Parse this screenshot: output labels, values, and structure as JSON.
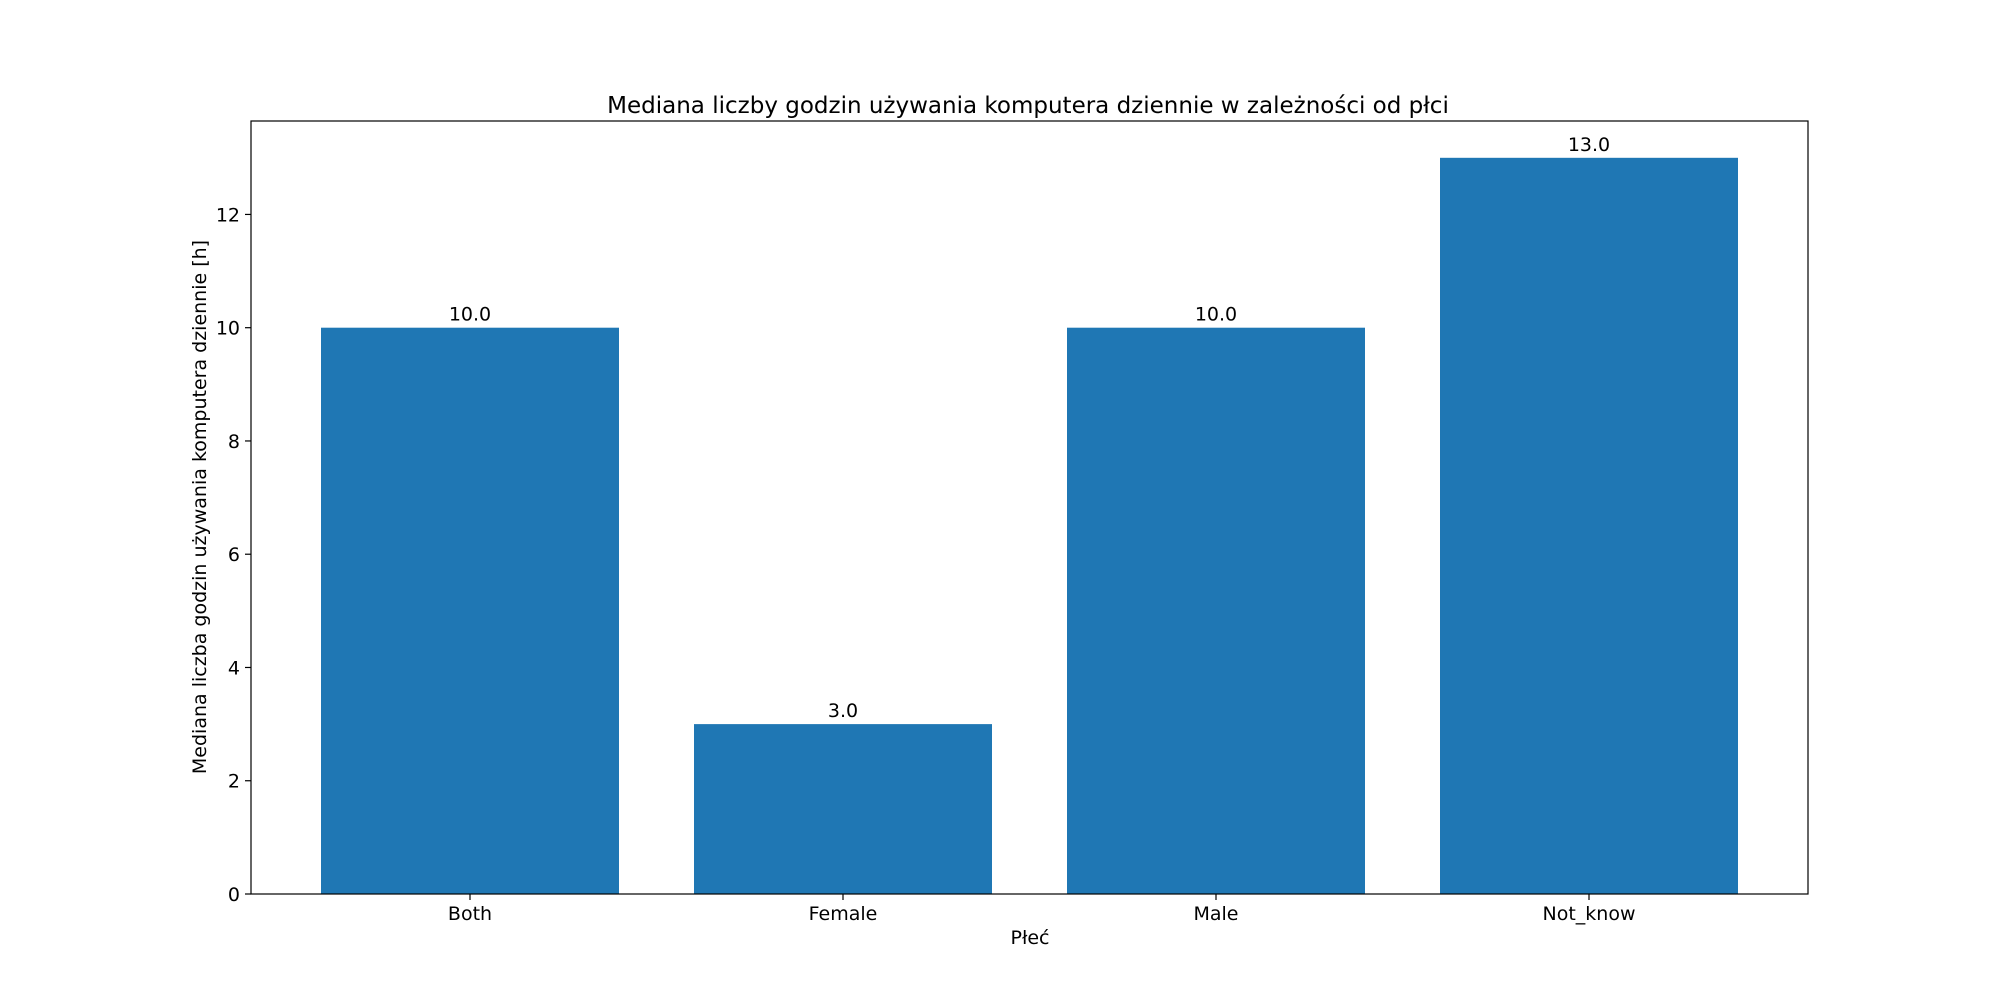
{
  "chart_data": {
    "type": "bar",
    "title": "Mediana liczby godzin używania komputera dziennie w zależności od płci",
    "xlabel": "Płeć",
    "ylabel": "Mediana liczba godzin używania komputera dziennie [h]",
    "categories": [
      "Both",
      "Female",
      "Male",
      "Not_know"
    ],
    "values": [
      10.0,
      3.0,
      10.0,
      13.0
    ],
    "value_labels": [
      "10.0",
      "3.0",
      "10.0",
      "13.0"
    ],
    "ylim": [
      0,
      13.65
    ],
    "yticks": [
      0,
      2,
      4,
      6,
      8,
      10,
      12
    ],
    "ytick_labels": [
      "0",
      "2",
      "4",
      "6",
      "8",
      "10",
      "12"
    ],
    "bar_color": "#1f77b4",
    "grid": false,
    "legend": "none"
  }
}
